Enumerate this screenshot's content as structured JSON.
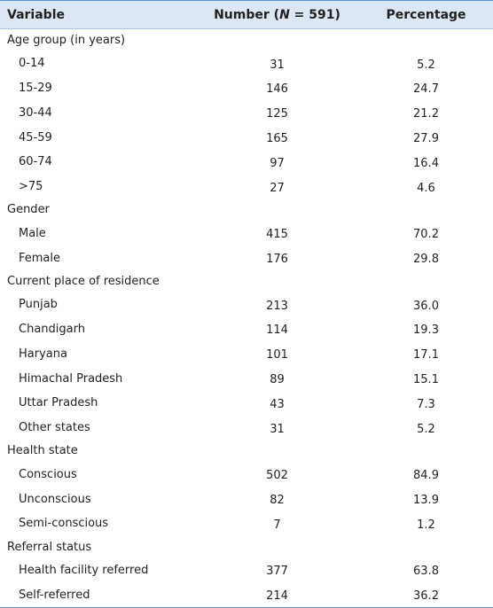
{
  "table": {
    "header": {
      "variable": "Variable",
      "number": {
        "before": "Number (",
        "italic": "N",
        "after": " = 591)"
      },
      "percentage": "Percentage"
    },
    "sections": [
      {
        "title": "Age group (in years)",
        "rows": [
          [
            "0-14",
            "31",
            "5.2"
          ],
          [
            "15-29",
            "146",
            "24.7"
          ],
          [
            "30-44",
            "125",
            "21.2"
          ],
          [
            "45-59",
            "165",
            "27.9"
          ],
          [
            "60-74",
            "97",
            "16.4"
          ],
          [
            ">75",
            "27",
            "4.6"
          ]
        ]
      },
      {
        "title": "Gender",
        "rows": [
          [
            "Male",
            "415",
            "70.2"
          ],
          [
            "Female",
            "176",
            "29.8"
          ]
        ]
      },
      {
        "title": "Current place of residence",
        "rows": [
          [
            "Punjab",
            "213",
            "36.0"
          ],
          [
            "Chandigarh",
            "114",
            "19.3"
          ],
          [
            "Haryana",
            "101",
            "17.1"
          ],
          [
            "Himachal Pradesh",
            "89",
            "15.1"
          ],
          [
            "Uttar Pradesh",
            "43",
            "7.3"
          ],
          [
            "Other states",
            "31",
            "5.2"
          ]
        ]
      },
      {
        "title": "Health state",
        "rows": [
          [
            "Conscious",
            "502",
            "84.9"
          ],
          [
            "Unconscious",
            "82",
            "13.9"
          ],
          [
            "Semi-conscious",
            "7",
            "1.2"
          ]
        ]
      },
      {
        "title": "Referral status",
        "rows": [
          [
            "Health facility referred",
            "377",
            "63.8"
          ],
          [
            "Self-referred",
            "214",
            "36.2"
          ]
        ]
      }
    ]
  }
}
